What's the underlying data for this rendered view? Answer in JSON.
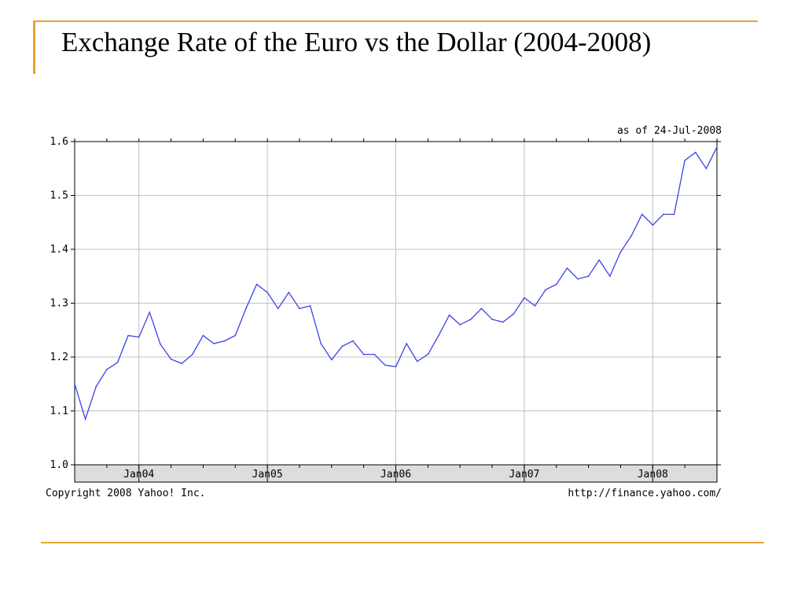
{
  "slide": {
    "title": "Exchange Rate of the Euro vs the Dollar (2004-2008)",
    "accent_color": "#e6a331"
  },
  "chart_data": {
    "type": "line",
    "title": "",
    "as_of": "as of 24-Jul-2008",
    "footer_left": "Copyright 2008 Yahoo! Inc.",
    "footer_right": "http://finance.yahoo.com/",
    "ylim": [
      1.0,
      1.6
    ],
    "yticks": [
      "1.0",
      "1.1",
      "1.2",
      "1.3",
      "1.4",
      "1.5",
      "1.6"
    ],
    "xticks": [
      {
        "label": "Jan04",
        "date": "2004-01"
      },
      {
        "label": "Jan05",
        "date": "2005-01"
      },
      {
        "label": "Jan06",
        "date": "2006-01"
      },
      {
        "label": "Jan07",
        "date": "2007-01"
      },
      {
        "label": "Jan08",
        "date": "2008-01"
      }
    ],
    "x_start": "2003-07",
    "x_end": "2008-07",
    "grid": true,
    "line_color": "#3b43e8",
    "series": [
      {
        "name": "",
        "x": [
          "2003-07",
          "2003-08",
          "2003-09",
          "2003-10",
          "2003-11",
          "2003-12",
          "2004-01",
          "2004-02",
          "2004-03",
          "2004-04",
          "2004-05",
          "2004-06",
          "2004-07",
          "2004-08",
          "2004-09",
          "2004-10",
          "2004-11",
          "2004-12",
          "2005-01",
          "2005-02",
          "2005-03",
          "2005-04",
          "2005-05",
          "2005-06",
          "2005-07",
          "2005-08",
          "2005-09",
          "2005-10",
          "2005-11",
          "2005-12",
          "2006-01",
          "2006-02",
          "2006-03",
          "2006-04",
          "2006-05",
          "2006-06",
          "2006-07",
          "2006-08",
          "2006-09",
          "2006-10",
          "2006-11",
          "2006-12",
          "2007-01",
          "2007-02",
          "2007-03",
          "2007-04",
          "2007-05",
          "2007-06",
          "2007-07",
          "2007-08",
          "2007-09",
          "2007-10",
          "2007-11",
          "2007-12",
          "2008-01",
          "2008-02",
          "2008-03",
          "2008-04",
          "2008-05",
          "2008-06",
          "2008-07"
        ],
        "y": [
          1.15,
          1.085,
          1.145,
          1.177,
          1.19,
          1.24,
          1.237,
          1.283,
          1.224,
          1.196,
          1.188,
          1.205,
          1.24,
          1.225,
          1.23,
          1.24,
          1.29,
          1.335,
          1.32,
          1.29,
          1.32,
          1.29,
          1.295,
          1.225,
          1.195,
          1.22,
          1.23,
          1.205,
          1.205,
          1.185,
          1.182,
          1.225,
          1.192,
          1.205,
          1.24,
          1.278,
          1.26,
          1.27,
          1.29,
          1.27,
          1.265,
          1.28,
          1.31,
          1.295,
          1.325,
          1.335,
          1.365,
          1.345,
          1.35,
          1.38,
          1.35,
          1.395,
          1.425,
          1.465,
          1.445,
          1.465,
          1.465,
          1.565,
          1.58,
          1.55,
          1.59
        ]
      }
    ]
  }
}
